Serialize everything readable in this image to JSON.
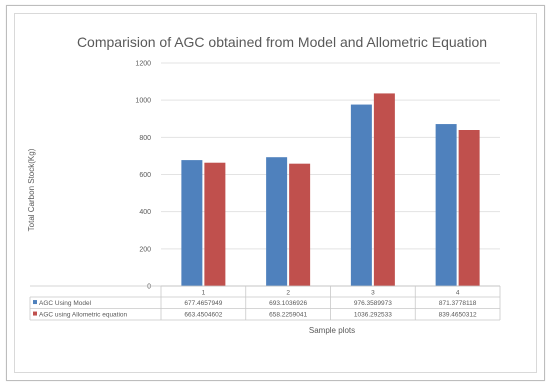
{
  "chart_data": {
    "type": "bar",
    "title": "Comparision of AGC obtained from Model and Allometric Equation",
    "xlabel": "Sample plots",
    "ylabel": "Total Carbon Stock(Kg)",
    "categories": [
      "1",
      "2",
      "3",
      "4"
    ],
    "ylim": [
      0,
      1200
    ],
    "yticks": [
      "0",
      "200",
      "400",
      "600",
      "800",
      "1000",
      "1200"
    ],
    "grid": true,
    "legend": "data-table",
    "series": [
      {
        "name": "AGC Using Model",
        "color": "#4f81bd",
        "values": [
          677.4657949,
          693.1036926,
          976.3589973,
          871.3778118
        ],
        "labels": [
          "677.4657949",
          "693.1036926",
          "976.3589973",
          "871.3778118"
        ]
      },
      {
        "name": "AGC using Allometric equation",
        "color": "#c0504d",
        "values": [
          663.4504602,
          658.2259041,
          1036.292533,
          839.4650312
        ],
        "labels": [
          "663.4504602",
          "658.2259041",
          "1036.292533",
          "839.4650312"
        ]
      }
    ]
  }
}
